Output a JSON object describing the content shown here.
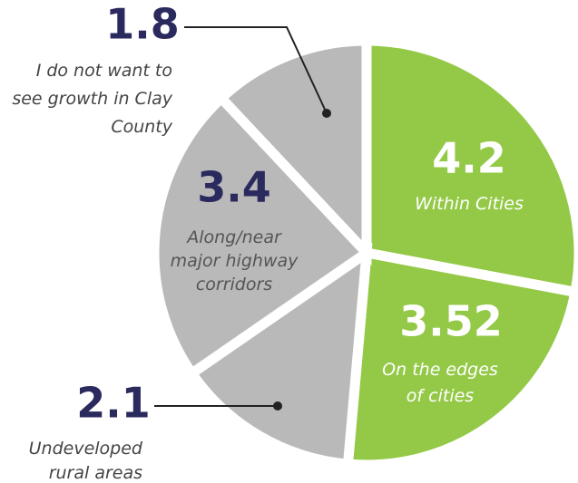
{
  "chart_data": {
    "type": "pie",
    "categories": [
      "Within Cities",
      "On the edges of cities",
      "Undeveloped rural areas",
      "Along/near major highway corridors",
      "I do not want to see growth in Clay County"
    ],
    "values": [
      4.2,
      3.52,
      2.1,
      3.4,
      1.8
    ],
    "colors": [
      "#94c947",
      "#94c947",
      "#b9b9b9",
      "#b9b9b9",
      "#b9b9b9"
    ]
  }
}
